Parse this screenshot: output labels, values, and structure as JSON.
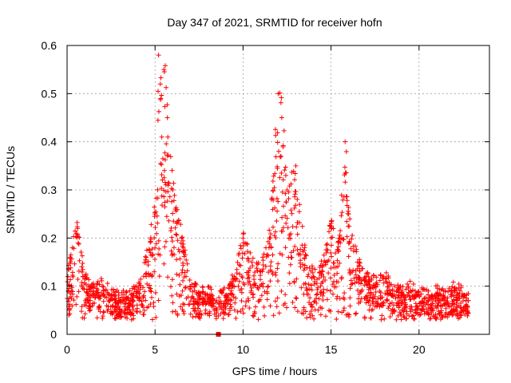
{
  "chart_data": {
    "type": "scatter",
    "title": "Day 347 of 2021, SRMTID for receiver hofn",
    "xlabel": "GPS time / hours",
    "ylabel": "SRMTID / TECUs",
    "xlim": [
      0,
      24
    ],
    "ylim": [
      0,
      0.6
    ],
    "xticks": [
      0,
      5,
      10,
      15,
      20
    ],
    "xtick_labels": [
      "0",
      "5",
      "10",
      "15",
      "20"
    ],
    "yticks": [
      0,
      0.1,
      0.2,
      0.3,
      0.4,
      0.5,
      0.6
    ],
    "ytick_labels": [
      "0",
      "0.1",
      "0.2",
      "0.3",
      "0.4",
      "0.5",
      "0.6"
    ],
    "grid": true,
    "series": [
      {
        "name": "SRMTID",
        "color": "#ff0000",
        "marker": "plus",
        "generated_description": "dense scatter of ~1800 points, baseline 0.05-0.15, peaks near hours 5.3 (~0.58), 12.2 (~0.50), 15.8 (~0.40)",
        "x": [
          0.05,
          0.3,
          0.6,
          1.0,
          1.5,
          2.0,
          2.5,
          3.0,
          3.5,
          4.0,
          4.5,
          5.0,
          5.2,
          5.3,
          5.5,
          5.7,
          6.0,
          6.5,
          7.0,
          7.5,
          8.0,
          8.5,
          9.0,
          9.5,
          10.0,
          10.5,
          11.0,
          11.5,
          12.0,
          12.2,
          12.5,
          13.0,
          13.5,
          14.0,
          14.5,
          15.0,
          15.5,
          15.8,
          16.0,
          16.5,
          17.0,
          17.5,
          18.0,
          18.5,
          19.0,
          19.5,
          20.0,
          20.5,
          21.0,
          21.5,
          22.0,
          22.5,
          22.8
        ],
        "y": [
          0.12,
          0.18,
          0.22,
          0.12,
          0.09,
          0.1,
          0.08,
          0.07,
          0.07,
          0.09,
          0.16,
          0.25,
          0.58,
          0.52,
          0.55,
          0.45,
          0.3,
          0.2,
          0.1,
          0.08,
          0.08,
          0.07,
          0.08,
          0.12,
          0.2,
          0.15,
          0.13,
          0.2,
          0.5,
          0.45,
          0.3,
          0.35,
          0.18,
          0.12,
          0.14,
          0.22,
          0.2,
          0.4,
          0.25,
          0.15,
          0.12,
          0.1,
          0.12,
          0.09,
          0.08,
          0.09,
          0.08,
          0.07,
          0.08,
          0.07,
          0.09,
          0.08,
          0.07
        ]
      }
    ],
    "special_marker": {
      "x": 8.6,
      "y": 0,
      "shape": "square"
    }
  }
}
